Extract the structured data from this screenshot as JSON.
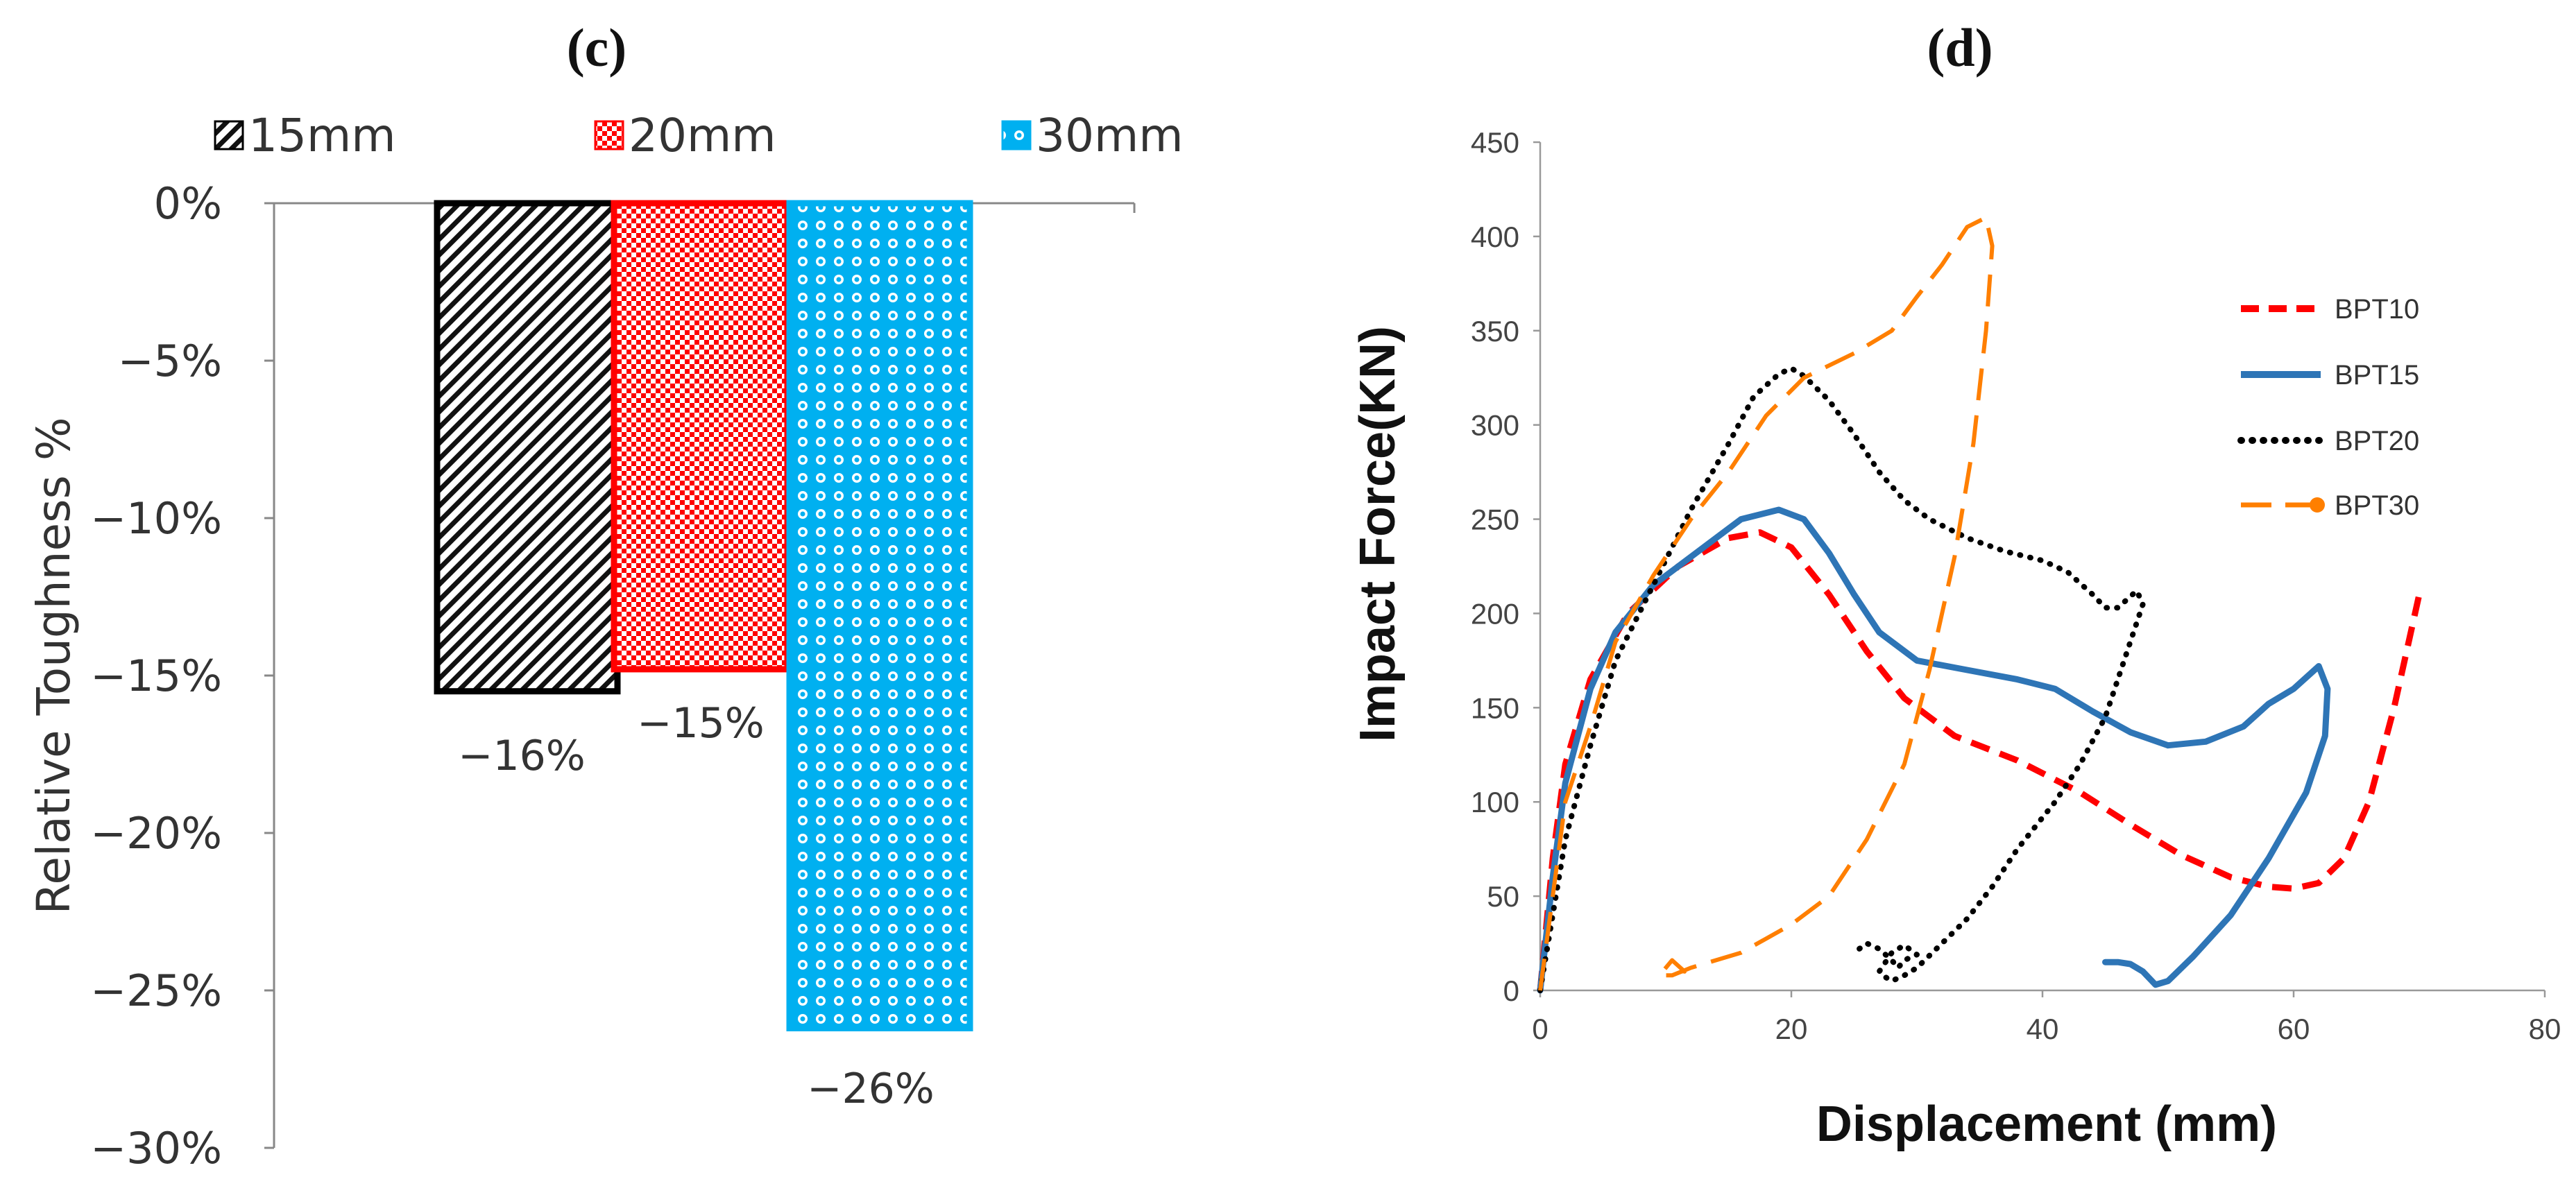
{
  "chart_data": [
    {
      "panel_label": "(c)",
      "type": "bar",
      "title": "",
      "xlabel": "",
      "ylabel": "Relative Toughness %",
      "ylim": [
        -30,
        0
      ],
      "yticks": [
        "0%",
        "−5%",
        "−10%",
        "−15%",
        "−20%",
        "−25%",
        "−30%"
      ],
      "ytick_values": [
        0,
        -5,
        -10,
        -15,
        -20,
        -25,
        -30
      ],
      "legend_position": "top",
      "series": [
        {
          "name": "15mm",
          "value": -15.5,
          "label": "−16%",
          "color": "#000000",
          "pattern": "diagonal-hatch"
        },
        {
          "name": "20mm",
          "value": -14.8,
          "label": "−15%",
          "color": "#ff0000",
          "pattern": "checker"
        },
        {
          "name": "30mm",
          "value": -26.2,
          "label": "−26%",
          "color": "#00b0f0",
          "pattern": "circles"
        }
      ]
    },
    {
      "panel_label": "(d)",
      "type": "line",
      "title": "",
      "xlabel": "Displacement (mm)",
      "ylabel": "Impact Force(KN)",
      "xlim": [
        0,
        80
      ],
      "ylim": [
        0,
        450
      ],
      "xticks": [
        "0",
        "20",
        "40",
        "60",
        "80"
      ],
      "xtick_values": [
        0,
        20,
        40,
        60,
        80
      ],
      "yticks": [
        "0",
        "50",
        "100",
        "150",
        "200",
        "250",
        "300",
        "350",
        "400",
        "450"
      ],
      "ytick_values": [
        0,
        50,
        100,
        150,
        200,
        250,
        300,
        350,
        400,
        450
      ],
      "legend_position": "right",
      "series": [
        {
          "name": "BPT10",
          "color": "#ff0000",
          "style": "dashed",
          "points": [
            [
              0,
              0
            ],
            [
              1,
              70
            ],
            [
              2,
              120
            ],
            [
              4,
              165
            ],
            [
              7,
              200
            ],
            [
              11,
              225
            ],
            [
              15,
              240
            ],
            [
              17.5,
              243
            ],
            [
              20,
              235
            ],
            [
              23,
              210
            ],
            [
              26,
              180
            ],
            [
              29,
              155
            ],
            [
              33,
              135
            ],
            [
              38,
              122
            ],
            [
              43,
              105
            ],
            [
              47,
              88
            ],
            [
              51,
              72
            ],
            [
              55,
              60
            ],
            [
              58,
              55
            ],
            [
              60,
              54
            ],
            [
              62,
              57
            ],
            [
              64,
              70
            ],
            [
              66,
              100
            ],
            [
              68,
              150
            ],
            [
              70,
              210
            ]
          ]
        },
        {
          "name": "BPT15",
          "color": "#2e75b6",
          "style": "solid",
          "points": [
            [
              0,
              0
            ],
            [
              1,
              60
            ],
            [
              2,
              110
            ],
            [
              4,
              160
            ],
            [
              6,
              190
            ],
            [
              9,
              215
            ],
            [
              13,
              235
            ],
            [
              16,
              250
            ],
            [
              19,
              255
            ],
            [
              21,
              250
            ],
            [
              23,
              232
            ],
            [
              25,
              210
            ],
            [
              27,
              190
            ],
            [
              30,
              175
            ],
            [
              34,
              170
            ],
            [
              38,
              165
            ],
            [
              41,
              160
            ],
            [
              44,
              148
            ],
            [
              47,
              137
            ],
            [
              50,
              130
            ],
            [
              53,
              132
            ],
            [
              56,
              140
            ],
            [
              58,
              152
            ],
            [
              60,
              160
            ],
            [
              62,
              172
            ],
            [
              62.7,
              160
            ],
            [
              62.5,
              135
            ],
            [
              61,
              105
            ],
            [
              58,
              70
            ],
            [
              55,
              40
            ],
            [
              52,
              18
            ],
            [
              50,
              5
            ],
            [
              49,
              3
            ],
            [
              48,
              10
            ],
            [
              47,
              14
            ],
            [
              46,
              15
            ],
            [
              45,
              15
            ]
          ]
        },
        {
          "name": "BPT20",
          "color": "#000000",
          "style": "dotted",
          "points": [
            [
              0,
              0
            ],
            [
              1,
              40
            ],
            [
              2,
              80
            ],
            [
              4,
              130
            ],
            [
              6,
              175
            ],
            [
              9,
              215
            ],
            [
              12,
              255
            ],
            [
              15,
              290
            ],
            [
              17,
              315
            ],
            [
              19,
              327
            ],
            [
              20,
              330
            ],
            [
              21,
              326
            ],
            [
              23,
              313
            ],
            [
              25,
              295
            ],
            [
              27,
              275
            ],
            [
              29,
              260
            ],
            [
              31,
              250
            ],
            [
              34,
              240
            ],
            [
              37,
              233
            ],
            [
              40,
              228
            ],
            [
              42,
              222
            ],
            [
              44,
              210
            ],
            [
              45,
              203
            ],
            [
              46,
              203
            ],
            [
              47,
              209
            ],
            [
              47.5,
              212
            ],
            [
              48,
              205
            ],
            [
              47,
              185
            ],
            [
              46,
              165
            ],
            [
              45,
              145
            ],
            [
              43,
              120
            ],
            [
              41,
              100
            ],
            [
              38,
              75
            ],
            [
              36,
              55
            ],
            [
              34,
              38
            ],
            [
              32,
              25
            ],
            [
              30,
              12
            ],
            [
              29,
              8
            ],
            [
              28,
              5
            ],
            [
              27.5,
              7
            ],
            [
              27,
              10
            ],
            [
              28,
              20
            ],
            [
              29,
              24
            ],
            [
              30,
              19
            ],
            [
              29,
              16
            ],
            [
              28.5,
              12
            ],
            [
              28,
              16
            ],
            [
              27,
              22
            ],
            [
              26,
              25
            ],
            [
              25,
              20
            ]
          ]
        },
        {
          "name": "BPT30",
          "color": "#ff7f00",
          "style": "long-dashed",
          "points": [
            [
              0,
              0
            ],
            [
              1,
              50
            ],
            [
              2,
              100
            ],
            [
              4,
              140
            ],
            [
              6,
              185
            ],
            [
              9,
              220
            ],
            [
              12,
              250
            ],
            [
              15,
              275
            ],
            [
              18,
              305
            ],
            [
              21,
              325
            ],
            [
              25,
              338
            ],
            [
              28,
              350
            ],
            [
              30,
              368
            ],
            [
              32,
              385
            ],
            [
              34,
              405
            ],
            [
              35.5,
              410
            ],
            [
              36,
              395
            ],
            [
              35.5,
              350
            ],
            [
              34.5,
              290
            ],
            [
              33,
              230
            ],
            [
              31,
              170
            ],
            [
              29,
              120
            ],
            [
              26,
              80
            ],
            [
              23,
              50
            ],
            [
              20,
              35
            ],
            [
              16,
              20
            ],
            [
              12,
              12
            ],
            [
              10.5,
              8
            ],
            [
              9.5,
              8
            ],
            [
              10,
              12
            ],
            [
              10.5,
              16
            ],
            [
              11.5,
              10
            ],
            [
              10.5,
              12
            ]
          ]
        }
      ]
    }
  ]
}
